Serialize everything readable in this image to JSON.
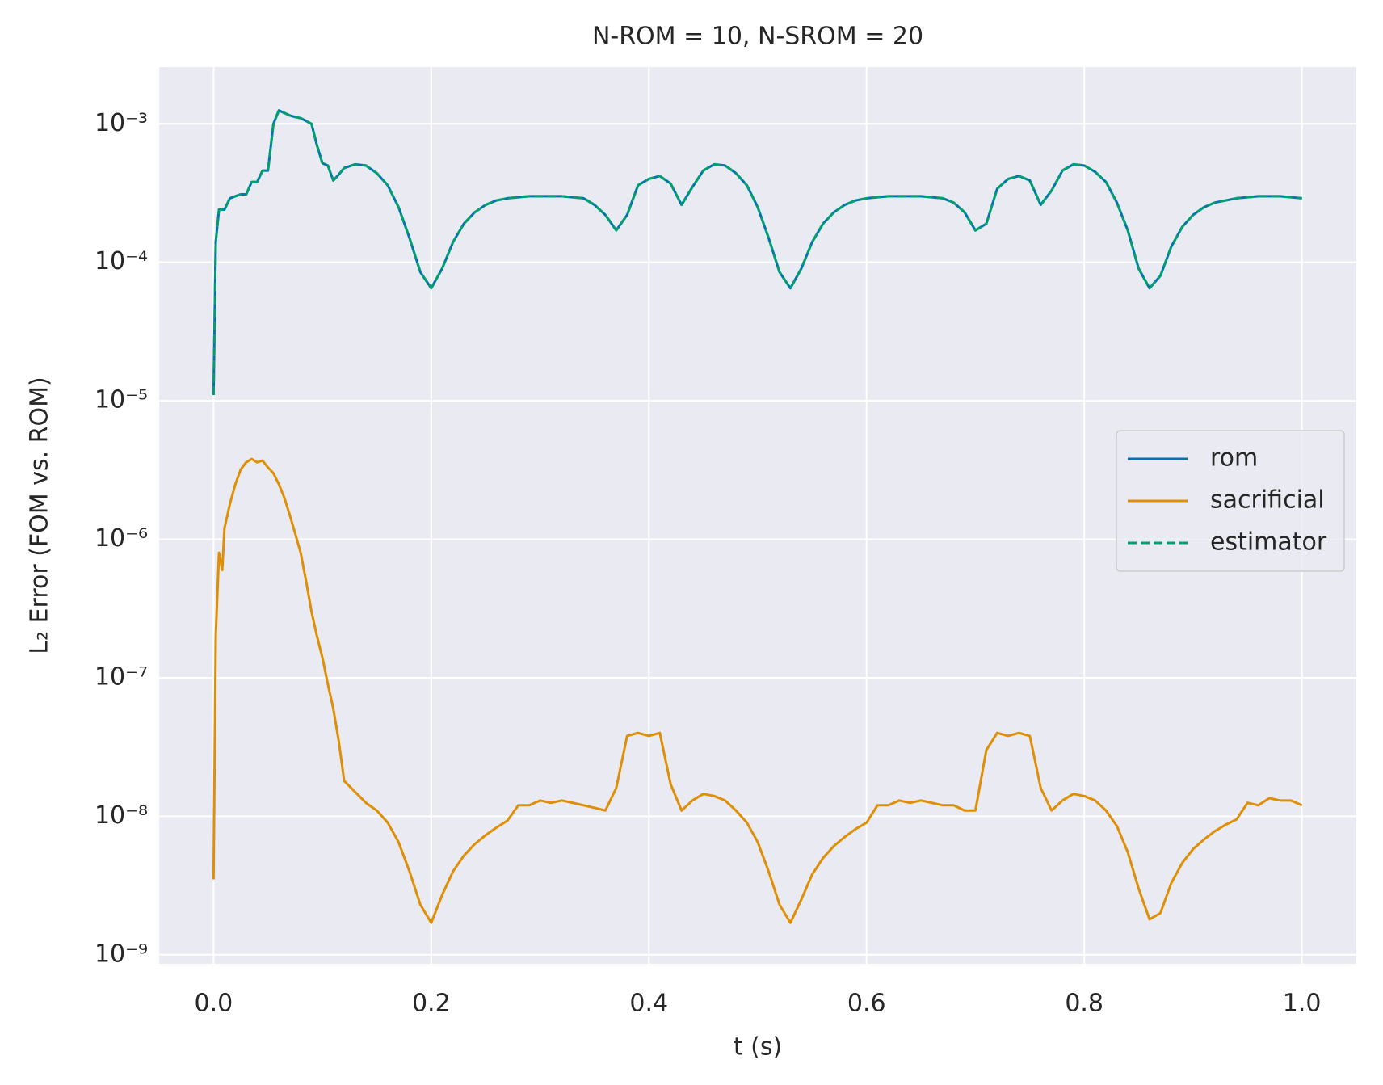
{
  "chart_data": {
    "type": "line",
    "title": "N-ROM = 10, N-SROM = 20",
    "xlabel": "t (s)",
    "ylabel": "L₂ Error (FOM vs. ROM)",
    "yscale": "log",
    "grid": true,
    "legend": "center right",
    "xlim": [
      -0.05,
      1.05
    ],
    "ylim": [
      8.6e-10,
      0.00257
    ],
    "xticks": [
      {
        "value": 0,
        "label": "0.0"
      },
      0.2,
      0.4,
      0.6,
      0.8,
      {
        "value": 1,
        "label": "1.0"
      }
    ],
    "yticks": [
      {
        "value": 1e-09,
        "label": "10⁻⁹"
      },
      {
        "value": 1e-08,
        "label": "10⁻⁸"
      },
      {
        "value": 1e-07,
        "label": "10⁻⁷"
      },
      {
        "value": 1e-06,
        "label": "10⁻⁶"
      },
      {
        "value": 1e-05,
        "label": "10⁻⁵"
      },
      {
        "value": 0.0001,
        "label": "10⁻⁴"
      },
      {
        "value": 0.001,
        "label": "10⁻³"
      }
    ],
    "x": [
      0,
      0.002,
      0.005,
      0.008,
      0.01,
      0.015,
      0.02,
      0.025,
      0.03,
      0.035,
      0.04,
      0.045,
      0.05,
      0.055,
      0.06,
      0.065,
      0.07,
      0.075,
      0.08,
      0.085,
      0.09,
      0.095,
      0.1,
      0.105,
      0.11,
      0.115,
      0.12,
      0.13,
      0.14,
      0.15,
      0.16,
      0.17,
      0.18,
      0.19,
      0.2,
      0.21,
      0.22,
      0.23,
      0.24,
      0.25,
      0.26,
      0.27,
      0.28,
      0.29,
      0.3,
      0.31,
      0.32,
      0.33,
      0.34,
      0.35,
      0.36,
      0.37,
      0.38,
      0.39,
      0.4,
      0.41,
      0.42,
      0.43,
      0.44,
      0.45,
      0.46,
      0.47,
      0.48,
      0.49,
      0.5,
      0.51,
      0.52,
      0.53,
      0.54,
      0.55,
      0.56,
      0.57,
      0.58,
      0.59,
      0.6,
      0.61,
      0.62,
      0.63,
      0.64,
      0.65,
      0.66,
      0.67,
      0.68,
      0.69,
      0.7,
      0.71,
      0.72,
      0.73,
      0.74,
      0.75,
      0.76,
      0.77,
      0.78,
      0.79,
      0.8,
      0.81,
      0.82,
      0.83,
      0.84,
      0.85,
      0.86,
      0.87,
      0.88,
      0.89,
      0.9,
      0.91,
      0.92,
      0.93,
      0.94,
      0.95,
      0.96,
      0.97,
      0.98,
      0.99,
      1.0
    ],
    "series": [
      {
        "name": "rom",
        "color": "#0173b2",
        "dash": "solid",
        "values": [
          1.1e-05,
          0.00014,
          0.00024,
          0.00024,
          0.00024,
          0.00029,
          0.0003,
          0.00031,
          0.00031,
          0.00038,
          0.00038,
          0.00046,
          0.00046,
          0.001,
          0.00125,
          0.0012,
          0.00115,
          0.00112,
          0.0011,
          0.00105,
          0.001,
          0.0007,
          0.00052,
          0.0005,
          0.00039,
          0.00043,
          0.00048,
          0.00051,
          0.0005,
          0.00044,
          0.00036,
          0.00025,
          0.00015,
          8.5e-05,
          6.5e-05,
          9e-05,
          0.00014,
          0.00019,
          0.00023,
          0.00026,
          0.00028,
          0.00029,
          0.000295,
          0.0003,
          0.0003,
          0.0003,
          0.0003,
          0.000295,
          0.00029,
          0.00026,
          0.00022,
          0.00017,
          0.00022,
          0.00036,
          0.0004,
          0.00042,
          0.00037,
          0.00026,
          0.00035,
          0.00046,
          0.00051,
          0.0005,
          0.00044,
          0.00036,
          0.00025,
          0.00015,
          8.5e-05,
          6.5e-05,
          9e-05,
          0.00014,
          0.00019,
          0.00023,
          0.00026,
          0.00028,
          0.00029,
          0.000295,
          0.0003,
          0.0003,
          0.0003,
          0.0003,
          0.000295,
          0.00029,
          0.00027,
          0.00023,
          0.00017,
          0.00019,
          0.00034,
          0.0004,
          0.00042,
          0.00039,
          0.00026,
          0.00033,
          0.00046,
          0.00051,
          0.0005,
          0.00045,
          0.00038,
          0.00027,
          0.00017,
          9e-05,
          6.5e-05,
          8e-05,
          0.00013,
          0.00018,
          0.00022,
          0.00025,
          0.00027,
          0.00028,
          0.00029,
          0.000295,
          0.0003,
          0.0003,
          0.0003,
          0.000295,
          0.00029
        ]
      },
      {
        "name": "sacrificial",
        "color": "#de8f05",
        "dash": "solid",
        "values": [
          3.5e-09,
          2e-07,
          8e-07,
          6e-07,
          1.2e-06,
          1.8e-06,
          2.5e-06,
          3.2e-06,
          3.6e-06,
          3.8e-06,
          3.6e-06,
          3.7e-06,
          3.3e-06,
          3e-06,
          2.5e-06,
          2e-06,
          1.5e-06,
          1.1e-06,
          8e-07,
          5e-07,
          3e-07,
          2e-07,
          1.4e-07,
          9e-08,
          6e-08,
          3.5e-08,
          1.8e-08,
          1.5e-08,
          1.25e-08,
          1.1e-08,
          9e-09,
          6.5e-09,
          4e-09,
          2.3e-09,
          1.7e-09,
          2.7e-09,
          4e-09,
          5.2e-09,
          6.3e-09,
          7.3e-09,
          8.3e-09,
          9.3e-09,
          1.2e-08,
          1.2e-08,
          1.3e-08,
          1.25e-08,
          1.3e-08,
          1.25e-08,
          1.2e-08,
          1.15e-08,
          1.1e-08,
          1.6e-08,
          3.8e-08,
          4e-08,
          3.8e-08,
          4e-08,
          1.7e-08,
          1.1e-08,
          1.3e-08,
          1.45e-08,
          1.4e-08,
          1.3e-08,
          1.1e-08,
          9e-09,
          6.5e-09,
          4e-09,
          2.3e-09,
          1.7e-09,
          2.5e-09,
          3.8e-09,
          5e-09,
          6.1e-09,
          7.1e-09,
          8.1e-09,
          9e-09,
          1.2e-08,
          1.2e-08,
          1.3e-08,
          1.25e-08,
          1.3e-08,
          1.25e-08,
          1.2e-08,
          1.2e-08,
          1.1e-08,
          1.1e-08,
          3e-08,
          4e-08,
          3.8e-08,
          4e-08,
          3.8e-08,
          1.6e-08,
          1.1e-08,
          1.3e-08,
          1.45e-08,
          1.4e-08,
          1.3e-08,
          1.1e-08,
          8.5e-09,
          5.5e-09,
          3e-09,
          1.8e-09,
          2e-09,
          3.3e-09,
          4.6e-09,
          5.8e-09,
          6.8e-09,
          7.8e-09,
          8.7e-09,
          9.5e-09,
          1.25e-08,
          1.2e-08,
          1.35e-08,
          1.3e-08,
          1.3e-08,
          1.2e-08
        ]
      },
      {
        "name": "estimator",
        "color": "#029e73",
        "dash": "dashed",
        "values": [
          1.1e-05,
          0.00014,
          0.00024,
          0.00024,
          0.00024,
          0.00029,
          0.0003,
          0.00031,
          0.00031,
          0.00038,
          0.00038,
          0.00046,
          0.00046,
          0.001,
          0.00125,
          0.0012,
          0.00115,
          0.00112,
          0.0011,
          0.00105,
          0.001,
          0.0007,
          0.00052,
          0.0005,
          0.00039,
          0.00043,
          0.00048,
          0.00051,
          0.0005,
          0.00044,
          0.00036,
          0.00025,
          0.00015,
          8.5e-05,
          6.5e-05,
          9e-05,
          0.00014,
          0.00019,
          0.00023,
          0.00026,
          0.00028,
          0.00029,
          0.000295,
          0.0003,
          0.0003,
          0.0003,
          0.0003,
          0.000295,
          0.00029,
          0.00026,
          0.00022,
          0.00017,
          0.00022,
          0.00036,
          0.0004,
          0.00042,
          0.00037,
          0.00026,
          0.00035,
          0.00046,
          0.00051,
          0.0005,
          0.00044,
          0.00036,
          0.00025,
          0.00015,
          8.5e-05,
          6.5e-05,
          9e-05,
          0.00014,
          0.00019,
          0.00023,
          0.00026,
          0.00028,
          0.00029,
          0.000295,
          0.0003,
          0.0003,
          0.0003,
          0.0003,
          0.000295,
          0.00029,
          0.00027,
          0.00023,
          0.00017,
          0.00019,
          0.00034,
          0.0004,
          0.00042,
          0.00039,
          0.00026,
          0.00033,
          0.00046,
          0.00051,
          0.0005,
          0.00045,
          0.00038,
          0.00027,
          0.00017,
          9e-05,
          6.5e-05,
          8e-05,
          0.00013,
          0.00018,
          0.00022,
          0.00025,
          0.00027,
          0.00028,
          0.00029,
          0.000295,
          0.0003,
          0.0003,
          0.0003,
          0.000295,
          0.00029
        ]
      }
    ]
  }
}
